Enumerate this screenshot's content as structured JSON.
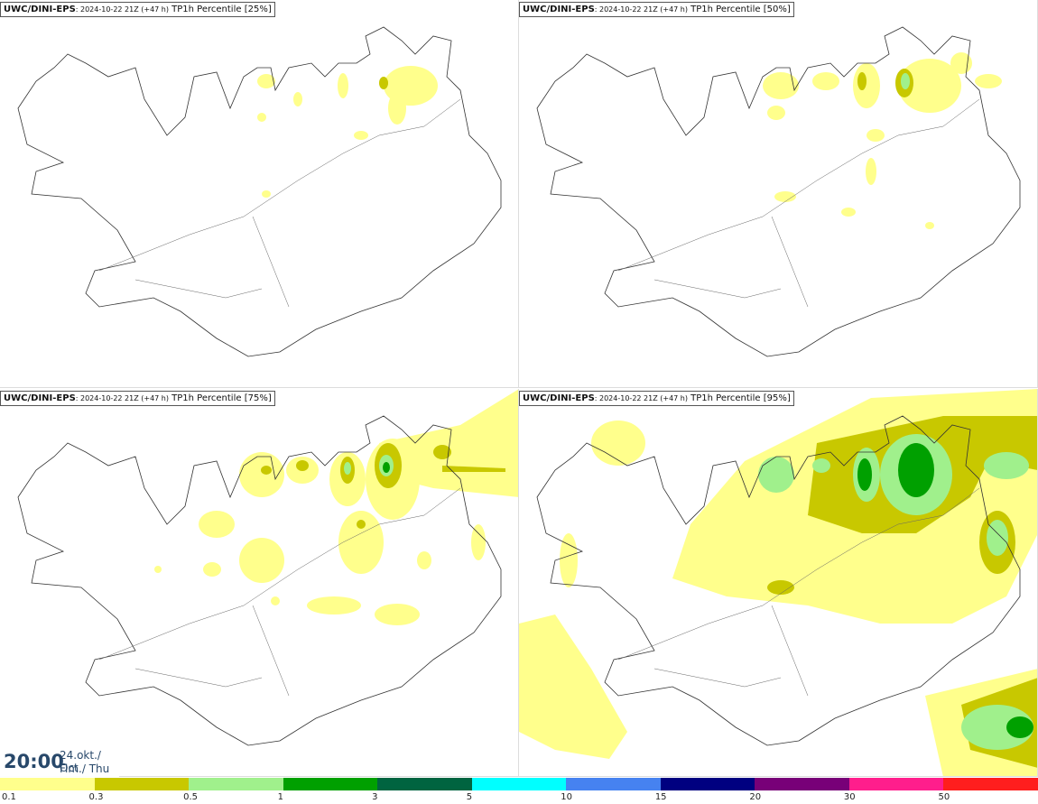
{
  "panels": [
    {
      "model": "UWC/DINI-EPS",
      "run": ": 2024-10-22 21Z (+47 h)",
      "field": " TP1h Percentile [25%]"
    },
    {
      "model": "UWC/DINI-EPS",
      "run": ": 2024-10-22 21Z (+47 h)",
      "field": " TP1h Percentile [50%]"
    },
    {
      "model": "UWC/DINI-EPS",
      "run": ": 2024-10-22 21Z (+47 h)",
      "field": " TP1h Percentile [75%]"
    },
    {
      "model": "UWC/DINI-EPS",
      "run": ": 2024-10-22 21Z (+47 h)",
      "field": " TP1h Percentile [95%]"
    }
  ],
  "valid_time": {
    "time": "20:00",
    "date": "24.okt./ Oct",
    "day": "Fim./ Thu"
  },
  "legend": {
    "colors": [
      "#ffff8c",
      "#c8c800",
      "#a0f08c",
      "#00a000",
      "#006440",
      "#00ffff",
      "#4682f0",
      "#000080",
      "#780078",
      "#ff1e8c",
      "#ff1e1e"
    ],
    "labels": [
      "0.1",
      "0.3",
      "0.5",
      "1",
      "3",
      "5",
      "10",
      "15",
      "20",
      "30",
      "50"
    ]
  },
  "colors": {
    "light_yellow": "#ffff8c",
    "olive": "#c8c800",
    "light_green": "#a0f08c",
    "green": "#00a000"
  }
}
